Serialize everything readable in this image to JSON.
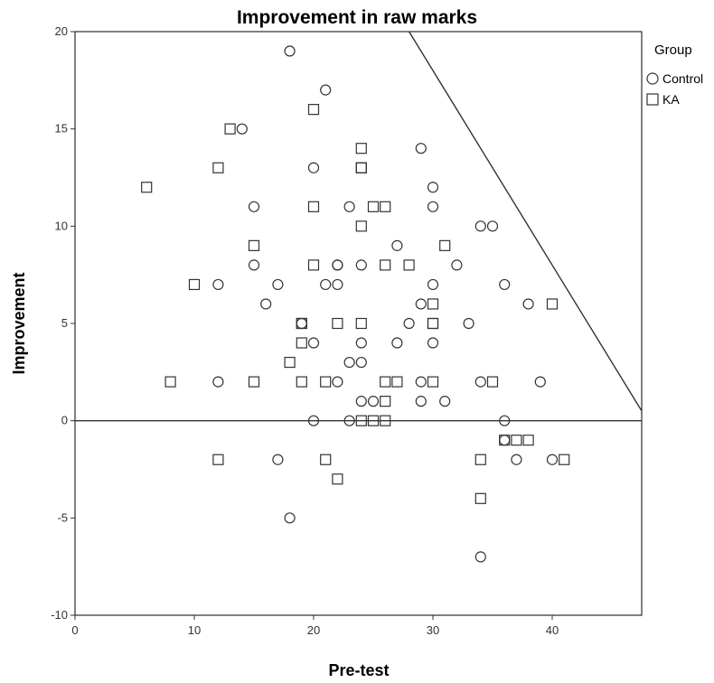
{
  "chart_data": {
    "type": "scatter",
    "title": "Improvement in raw marks",
    "xlabel": "Pre-test",
    "ylabel": "Improvement",
    "xlim": [
      0,
      47.5
    ],
    "ylim": [
      -10,
      20
    ],
    "xticks": [
      0,
      10,
      20,
      30,
      40
    ],
    "yticks": [
      -10,
      -5,
      0,
      5,
      10,
      15,
      20
    ],
    "grid": false,
    "legend": {
      "title": "Group",
      "placement": "right"
    },
    "reference_lines": [
      {
        "type": "horizontal",
        "y": 0
      },
      {
        "type": "line",
        "x1": 28,
        "y1": 20,
        "x2": 47.5,
        "y2": 0.5
      }
    ],
    "series": [
      {
        "name": "Control",
        "marker": "circle",
        "points": [
          [
            18,
            19
          ],
          [
            21,
            17
          ],
          [
            14,
            15
          ],
          [
            29,
            14
          ],
          [
            20,
            13
          ],
          [
            30,
            12
          ],
          [
            15,
            11
          ],
          [
            23,
            11
          ],
          [
            30,
            11
          ],
          [
            34,
            10
          ],
          [
            35,
            10
          ],
          [
            27,
            9
          ],
          [
            15,
            8
          ],
          [
            22,
            8
          ],
          [
            22,
            8
          ],
          [
            24,
            8
          ],
          [
            32,
            8
          ],
          [
            12,
            7
          ],
          [
            17,
            7
          ],
          [
            21,
            7
          ],
          [
            22,
            7
          ],
          [
            30,
            7
          ],
          [
            36,
            7
          ],
          [
            16,
            6
          ],
          [
            29,
            6
          ],
          [
            38,
            6
          ],
          [
            19,
            5
          ],
          [
            28,
            5
          ],
          [
            33,
            5
          ],
          [
            20,
            4
          ],
          [
            24,
            4
          ],
          [
            27,
            4
          ],
          [
            30,
            4
          ],
          [
            23,
            3
          ],
          [
            24,
            3
          ],
          [
            12,
            2
          ],
          [
            22,
            2
          ],
          [
            29,
            2
          ],
          [
            34,
            2
          ],
          [
            39,
            2
          ],
          [
            24,
            1
          ],
          [
            25,
            1
          ],
          [
            29,
            1
          ],
          [
            31,
            1
          ],
          [
            20,
            0
          ],
          [
            23,
            0
          ],
          [
            36,
            0
          ],
          [
            36,
            -1
          ],
          [
            17,
            -2
          ],
          [
            37,
            -2
          ],
          [
            40,
            -2
          ],
          [
            18,
            -5
          ],
          [
            34,
            -7
          ]
        ]
      },
      {
        "name": "KA",
        "marker": "square",
        "points": [
          [
            20,
            16
          ],
          [
            13,
            15
          ],
          [
            24,
            14
          ],
          [
            12,
            13
          ],
          [
            24,
            13
          ],
          [
            24,
            13
          ],
          [
            6,
            12
          ],
          [
            20,
            11
          ],
          [
            25,
            11
          ],
          [
            26,
            11
          ],
          [
            24,
            10
          ],
          [
            15,
            9
          ],
          [
            31,
            9
          ],
          [
            20,
            8
          ],
          [
            26,
            8
          ],
          [
            28,
            8
          ],
          [
            10,
            7
          ],
          [
            30,
            6
          ],
          [
            40,
            6
          ],
          [
            19,
            5
          ],
          [
            19,
            5
          ],
          [
            22,
            5
          ],
          [
            24,
            5
          ],
          [
            30,
            5
          ],
          [
            30,
            5
          ],
          [
            19,
            4
          ],
          [
            18,
            3
          ],
          [
            8,
            2
          ],
          [
            15,
            2
          ],
          [
            19,
            2
          ],
          [
            21,
            2
          ],
          [
            26,
            2
          ],
          [
            27,
            2
          ],
          [
            30,
            2
          ],
          [
            35,
            2
          ],
          [
            26,
            1
          ],
          [
            24,
            0
          ],
          [
            25,
            0
          ],
          [
            26,
            0
          ],
          [
            36,
            -1
          ],
          [
            37,
            -1
          ],
          [
            38,
            -1
          ],
          [
            12,
            -2
          ],
          [
            21,
            -2
          ],
          [
            34,
            -2
          ],
          [
            41,
            -2
          ],
          [
            22,
            -3
          ],
          [
            34,
            -4
          ]
        ]
      }
    ]
  }
}
